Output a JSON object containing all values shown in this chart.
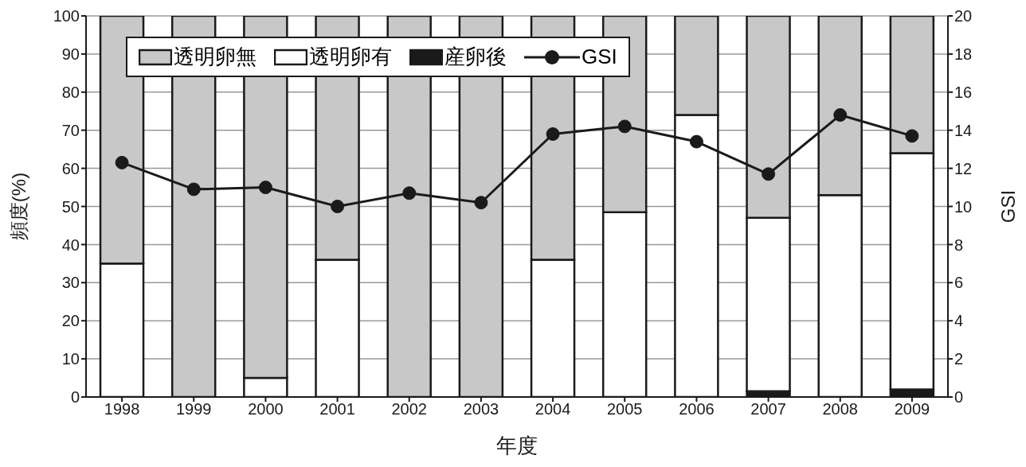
{
  "chart_data": {
    "type": "bar",
    "stacked": true,
    "xlabel": "年度",
    "ylabel": "頻度(%)",
    "y2label": "GSI",
    "categories": [
      "1998",
      "1999",
      "2000",
      "2001",
      "2002",
      "2003",
      "2004",
      "2005",
      "2006",
      "2007",
      "2008",
      "2009"
    ],
    "series": [
      {
        "name": "産卵後",
        "color": "#1a1a1a",
        "values": [
          0,
          0,
          0,
          0,
          0,
          0,
          0,
          0,
          0,
          1.5,
          0,
          2
        ]
      },
      {
        "name": "透明卵有",
        "color": "#ffffff",
        "values": [
          35,
          0,
          5,
          36,
          0,
          0,
          36,
          48.5,
          74,
          45.5,
          53,
          62
        ]
      },
      {
        "name": "透明卵無",
        "color": "#c8c8c8",
        "values": [
          65,
          100,
          95,
          64,
          100,
          100,
          64,
          51.5,
          26,
          53,
          47,
          36
        ]
      },
      {
        "name": "GSI",
        "type": "line",
        "axis": "y2",
        "color": "#1a1a1a",
        "marker": "circle",
        "values": [
          12.3,
          10.9,
          11.0,
          10.0,
          10.7,
          10.2,
          13.8,
          14.2,
          13.4,
          11.7,
          14.8,
          13.7
        ]
      }
    ],
    "ylim": [
      0,
      100
    ],
    "yticks": [
      0,
      10,
      20,
      30,
      40,
      50,
      60,
      70,
      80,
      90,
      100
    ],
    "y2lim": [
      0,
      20
    ],
    "y2ticks": [
      0,
      2,
      4,
      6,
      8,
      10,
      12,
      14,
      16,
      18,
      20
    ],
    "grid": "y",
    "legend": "top"
  }
}
